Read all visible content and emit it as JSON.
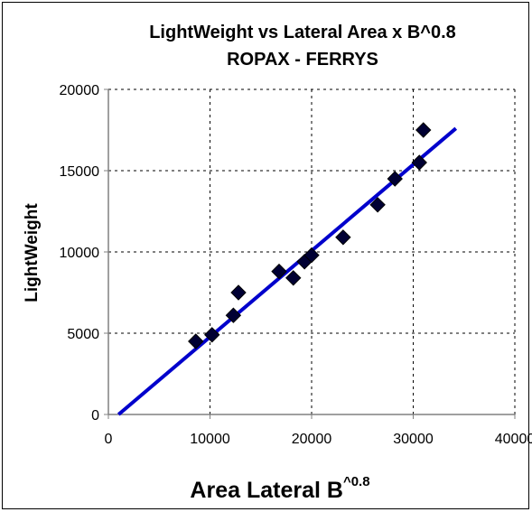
{
  "chart_data": {
    "type": "scatter",
    "title": "LightWeight vs Lateral  Area x B^0.8",
    "subtitle": "ROPAX - FERRYS",
    "xlabel": "Area Lateral B",
    "xlabel_superscript": "^0.8",
    "ylabel": "LightWeight",
    "xlim": [
      0,
      40000
    ],
    "ylim": [
      0,
      20000
    ],
    "x_ticks": [
      0,
      10000,
      20000,
      30000,
      40000
    ],
    "y_ticks": [
      0,
      5000,
      10000,
      15000,
      20000
    ],
    "x_tick_labels": [
      "0",
      "10000",
      "20000",
      "30000",
      "40000"
    ],
    "y_tick_labels": [
      "0",
      "5000",
      "10000",
      "15000",
      "20000"
    ],
    "grid": true,
    "grid_style": "dashed",
    "legend": "none",
    "points": [
      {
        "x": 8600,
        "y": 4500
      },
      {
        "x": 10200,
        "y": 4900
      },
      {
        "x": 12300,
        "y": 6100
      },
      {
        "x": 12800,
        "y": 7500
      },
      {
        "x": 16800,
        "y": 8800
      },
      {
        "x": 18200,
        "y": 8400
      },
      {
        "x": 19300,
        "y": 9400
      },
      {
        "x": 20000,
        "y": 9800
      },
      {
        "x": 23100,
        "y": 10900
      },
      {
        "x": 26500,
        "y": 12900
      },
      {
        "x": 28200,
        "y": 14500
      },
      {
        "x": 30600,
        "y": 15500
      },
      {
        "x": 31000,
        "y": 17500
      }
    ],
    "trendline": {
      "type": "linear",
      "start": {
        "x": 1000,
        "y": 0
      },
      "end": {
        "x": 34200,
        "y": 17600
      }
    },
    "colors": {
      "marker": "#000033",
      "trendline": "#0000cc",
      "grid": "#000000",
      "axis": "#808080"
    },
    "marker_shape": "diamond"
  }
}
